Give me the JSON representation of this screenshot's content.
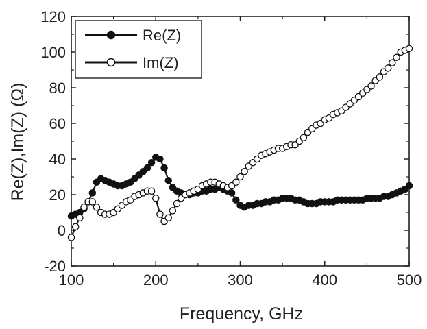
{
  "chart_data": {
    "type": "line",
    "title": "",
    "xlabel": "Frequency, GHz",
    "ylabel": "Re(Z),Im(Z) (Ω)",
    "xlim": [
      100,
      500
    ],
    "ylim": [
      -20,
      120
    ],
    "xticks": [
      100,
      200,
      300,
      400,
      500
    ],
    "yticks": [
      -20,
      0,
      20,
      40,
      60,
      80,
      100,
      120
    ],
    "grid": false,
    "legend_position": "top-left",
    "series": [
      {
        "name": "Re(Z)",
        "marker": "filled-circle",
        "color": "#111111",
        "x": [
          100,
          105,
          110,
          115,
          120,
          125,
          130,
          135,
          140,
          145,
          150,
          155,
          160,
          165,
          170,
          175,
          180,
          185,
          190,
          195,
          200,
          205,
          210,
          215,
          220,
          225,
          230,
          235,
          240,
          245,
          250,
          255,
          260,
          265,
          270,
          275,
          280,
          285,
          290,
          295,
          300,
          305,
          310,
          315,
          320,
          325,
          330,
          335,
          340,
          345,
          350,
          355,
          360,
          365,
          370,
          375,
          380,
          385,
          390,
          395,
          400,
          405,
          410,
          415,
          420,
          425,
          430,
          435,
          440,
          445,
          450,
          455,
          460,
          465,
          470,
          475,
          480,
          485,
          490,
          495,
          500
        ],
        "y": [
          8,
          9,
          10,
          12,
          16,
          21,
          27,
          29,
          28,
          27,
          26,
          25,
          25,
          26,
          27,
          29,
          31,
          33,
          35,
          38,
          41,
          40,
          35,
          28,
          24,
          22,
          21,
          20,
          20,
          21,
          21,
          22,
          22,
          23,
          23,
          24,
          23,
          22,
          21,
          17,
          14,
          13,
          14,
          14,
          15,
          15,
          16,
          16,
          17,
          17,
          18,
          18,
          18,
          17,
          17,
          16,
          15,
          15,
          15,
          16,
          16,
          16,
          16,
          17,
          17,
          17,
          17,
          17,
          17,
          17,
          18,
          18,
          18,
          18,
          19,
          19,
          20,
          21,
          22,
          23,
          25
        ]
      },
      {
        "name": "Im(Z)",
        "marker": "open-circle",
        "color": "#111111",
        "x": [
          100,
          105,
          110,
          115,
          120,
          125,
          130,
          135,
          140,
          145,
          150,
          155,
          160,
          165,
          170,
          175,
          180,
          185,
          190,
          195,
          200,
          205,
          210,
          215,
          220,
          225,
          230,
          235,
          240,
          245,
          250,
          255,
          260,
          265,
          270,
          275,
          280,
          285,
          290,
          295,
          300,
          305,
          310,
          315,
          320,
          325,
          330,
          335,
          340,
          345,
          350,
          355,
          360,
          365,
          370,
          375,
          380,
          385,
          390,
          395,
          400,
          405,
          410,
          415,
          420,
          425,
          430,
          435,
          440,
          445,
          450,
          455,
          460,
          465,
          470,
          475,
          480,
          485,
          490,
          495,
          500
        ],
        "y": [
          -4,
          2,
          7,
          13,
          16,
          16,
          13,
          10,
          9,
          9,
          10,
          12,
          14,
          16,
          17,
          19,
          20,
          21,
          22,
          22,
          18,
          9,
          5,
          7,
          11,
          15,
          18,
          20,
          21,
          22,
          23,
          25,
          26,
          27,
          27,
          26,
          25,
          24,
          25,
          27,
          30,
          33,
          36,
          38,
          40,
          42,
          43,
          44,
          45,
          46,
          46,
          47,
          48,
          48,
          50,
          52,
          55,
          57,
          59,
          60,
          62,
          63,
          65,
          66,
          67,
          69,
          71,
          73,
          75,
          77,
          79,
          81,
          84,
          86,
          89,
          91,
          94,
          97,
          100,
          101,
          102
        ]
      }
    ]
  }
}
